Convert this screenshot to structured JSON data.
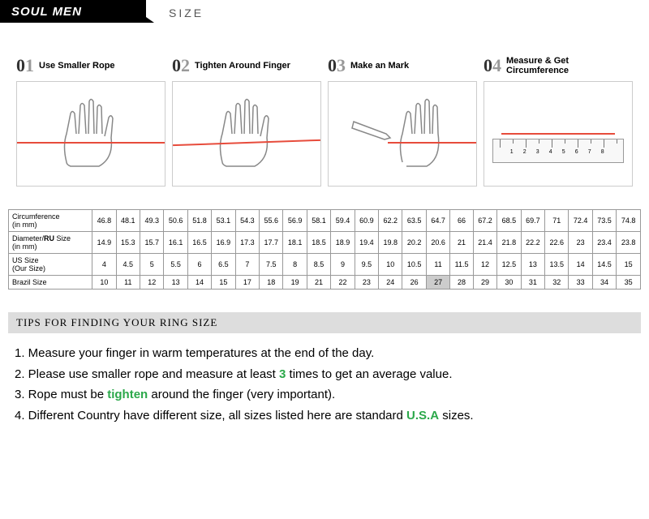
{
  "header": {
    "brand": "SOUL MEN",
    "size_label": "SIZE"
  },
  "steps": [
    {
      "num": "01",
      "label": "Use Smaller Rope"
    },
    {
      "num": "02",
      "label": "Tighten Around Finger"
    },
    {
      "num": "03",
      "label": "Make an Mark"
    },
    {
      "num": "04",
      "label": "Measure & Get Circumference"
    }
  ],
  "table": {
    "rows": [
      {
        "head": "Circumference (in mm)",
        "vals": [
          "46.8",
          "48.1",
          "49.3",
          "50.6",
          "51.8",
          "53.1",
          "54.3",
          "55.6",
          "56.9",
          "58.1",
          "59.4",
          "60.9",
          "62.2",
          "63.5",
          "64.7",
          "66",
          "67.2",
          "68.5",
          "69.7",
          "71",
          "72.4",
          "73.5",
          "74.8"
        ]
      },
      {
        "head": "Diameter/RU Size (in mm)",
        "vals": [
          "14.9",
          "15.3",
          "15.7",
          "16.1",
          "16.5",
          "16.9",
          "17.3",
          "17.7",
          "18.1",
          "18.5",
          "18.9",
          "19.4",
          "19.8",
          "20.2",
          "20.6",
          "21",
          "21.4",
          "21.8",
          "22.2",
          "22.6",
          "23",
          "23.4",
          "23.8"
        ]
      },
      {
        "head": "US Size (Our Size)",
        "vals": [
          "4",
          "4.5",
          "5",
          "5.5",
          "6",
          "6.5",
          "7",
          "7.5",
          "8",
          "8.5",
          "9",
          "9.5",
          "10",
          "10.5",
          "11",
          "11.5",
          "12",
          "12.5",
          "13",
          "13.5",
          "14",
          "14.5",
          "15"
        ]
      },
      {
        "head": "Brazil Size",
        "vals": [
          "10",
          "11",
          "12",
          "13",
          "14",
          "15",
          "17",
          "18",
          "19",
          "21",
          "22",
          "23",
          "24",
          "26",
          "27",
          "28",
          "29",
          "30",
          "31",
          "32",
          "33",
          "34",
          "35"
        ]
      }
    ]
  },
  "tips": {
    "title": "TIPS FOR FINDING YOUR RING SIZE",
    "items": [
      {
        "pre": "1. Measure your finger in warm temperatures at the end of the day.",
        "hl": "",
        "post": ""
      },
      {
        "pre": "2. Please use smaller rope and measure at least ",
        "hl": "3",
        "post": " times to get an average value."
      },
      {
        "pre": "3. Rope must be ",
        "hl": "tighten",
        "post": " around the finger (very important)."
      },
      {
        "pre": "4. Different Country have different size, all sizes listed here are standard ",
        "hl": "U.S.A",
        "post": " sizes."
      }
    ]
  },
  "colors": {
    "rope": "#e74c3c",
    "highlight": "#2ba84a",
    "border": "#999999"
  }
}
